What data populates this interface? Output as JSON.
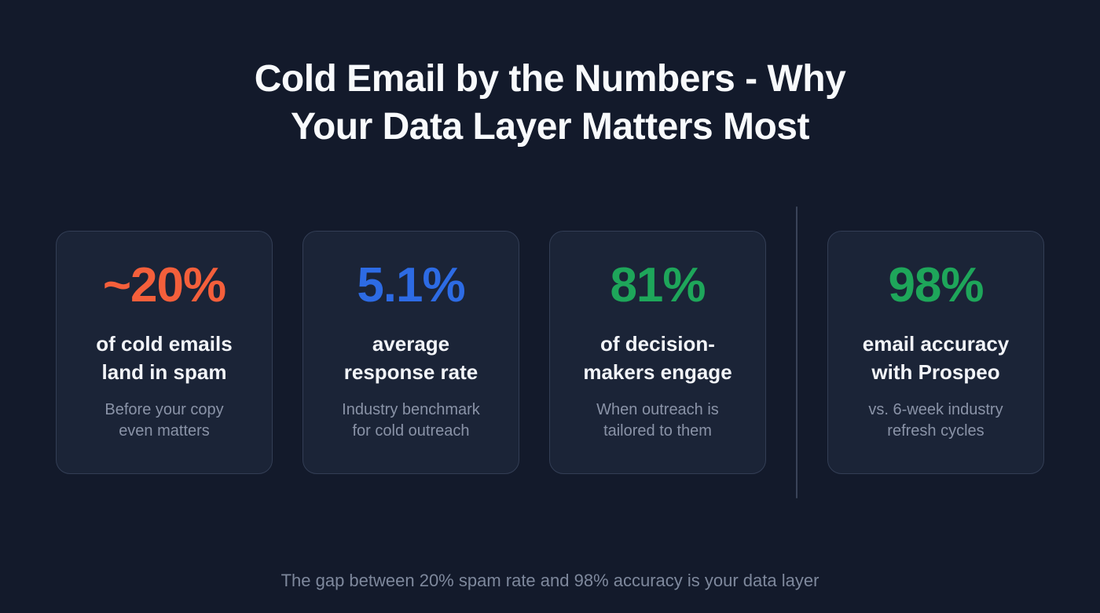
{
  "title": {
    "text": "Cold Email by the Numbers - Why\nYour Data Layer Matters Most"
  },
  "cards": [
    {
      "value": "~20%",
      "color": "#f45f3b",
      "label": "of cold emails\nland in spam",
      "note": "Before your copy\neven matters"
    },
    {
      "value": "5.1%",
      "color": "#2d6be4",
      "label": "average\nresponse rate",
      "note": "Industry benchmark\nfor cold outreach"
    },
    {
      "value": "81%",
      "color": "#1ea65a",
      "label": "of decision-\nmakers engage",
      "note": "When outreach is\ntailored to them"
    },
    {
      "value": "98%",
      "color": "#1ea65a",
      "label": "email accuracy\nwith Prospeo",
      "note": "vs. 6-week industry\nrefresh cycles"
    }
  ],
  "footer": {
    "text": "The gap between 20% spam rate and 98% accuracy is your data layer"
  },
  "chart_data": {
    "type": "table",
    "title": "Cold Email by the Numbers - Why Your Data Layer Matters Most",
    "stats": [
      {
        "value_text": "~20%",
        "value": 20,
        "approximate": true,
        "label": "of cold emails land in spam",
        "note": "Before your copy even matters",
        "color": "#f45f3b"
      },
      {
        "value_text": "5.1%",
        "value": 5.1,
        "approximate": false,
        "label": "average response rate",
        "note": "Industry benchmark for cold outreach",
        "color": "#2d6be4"
      },
      {
        "value_text": "81%",
        "value": 81,
        "approximate": false,
        "label": "of decision-makers engage",
        "note": "When outreach is tailored to them",
        "color": "#1ea65a"
      },
      {
        "value_text": "98%",
        "value": 98,
        "approximate": false,
        "label": "email accuracy with Prospeo",
        "note": "vs. 6-week industry refresh cycles",
        "color": "#1ea65a"
      }
    ],
    "annotation": "The gap between 20% spam rate and 98% accuracy is your data layer",
    "layout": {
      "grouping": "cards 1-3 grouped, vertical divider, card 4 highlighted separately"
    }
  }
}
